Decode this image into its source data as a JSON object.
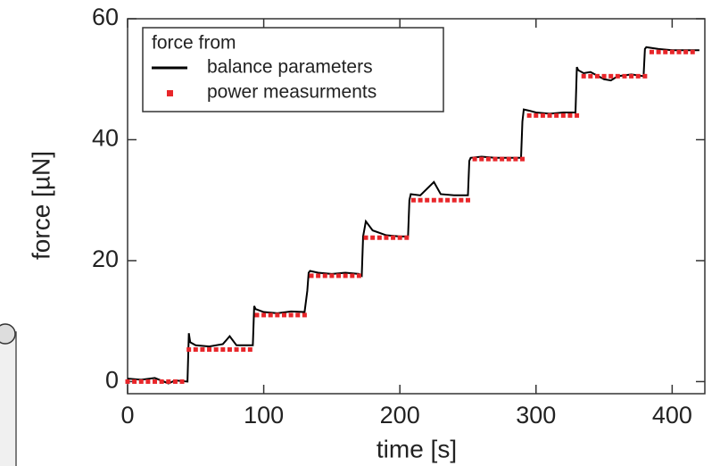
{
  "chart_data": {
    "type": "line",
    "xlabel": "time [s]",
    "ylabel": "force [µN]",
    "legend_title": "force from",
    "legend": "upper left",
    "xlim": [
      0,
      424
    ],
    "ylim": [
      -2,
      60
    ],
    "xticks": [
      0,
      100,
      200,
      300,
      400
    ],
    "yticks": [
      0,
      20,
      40,
      60
    ],
    "series": [
      {
        "name": "balance parameters",
        "color": "#000000",
        "type": "line",
        "x": [
          0,
          10,
          20,
          30,
          35,
          44,
          45,
          46,
          50,
          60,
          70,
          75,
          80,
          85,
          92,
          93,
          94,
          100,
          110,
          120,
          130,
          132,
          133,
          134,
          140,
          150,
          160,
          170,
          172,
          173,
          175,
          180,
          190,
          200,
          206,
          207,
          208,
          215,
          225,
          230,
          240,
          250,
          251,
          252,
          260,
          270,
          280,
          289,
          290,
          291,
          295,
          300,
          310,
          320,
          329,
          330,
          331,
          335,
          340,
          350,
          355,
          360,
          370,
          379,
          380,
          381,
          390,
          400,
          410,
          420
        ],
        "y": [
          0.5,
          0.3,
          0.6,
          -0.3,
          0.2,
          0.0,
          8,
          6.5,
          6,
          5.8,
          6.2,
          7.5,
          6,
          6,
          6,
          12.5,
          12,
          11.5,
          11.3,
          11.6,
          11.5,
          15,
          18,
          18.3,
          18,
          17.8,
          18,
          17.8,
          17.5,
          24,
          26.5,
          25,
          24.2,
          24,
          24,
          30,
          31,
          30.8,
          33,
          31,
          30.8,
          30.8,
          36.5,
          37,
          37.2,
          37,
          37,
          37,
          43,
          45,
          44.8,
          44.5,
          44.3,
          44.5,
          44.5,
          52,
          51.5,
          51,
          51.2,
          50,
          49.8,
          50.5,
          50.8,
          50.5,
          55,
          55.3,
          55,
          54.8,
          54.8,
          54.8
        ]
      },
      {
        "name": "power measurments",
        "color": "#e8262a",
        "type": "scatter",
        "x": [
          0,
          5,
          10,
          15,
          20,
          25,
          30,
          35,
          40,
          45,
          50,
          55,
          60,
          65,
          70,
          75,
          80,
          85,
          90,
          95,
          100,
          105,
          110,
          115,
          120,
          125,
          130,
          135,
          140,
          145,
          150,
          155,
          160,
          165,
          170,
          175,
          180,
          185,
          190,
          195,
          200,
          205,
          210,
          215,
          220,
          225,
          230,
          235,
          240,
          245,
          250,
          255,
          260,
          265,
          270,
          275,
          280,
          285,
          290,
          295,
          300,
          305,
          310,
          315,
          320,
          325,
          330,
          335,
          340,
          345,
          350,
          355,
          360,
          365,
          370,
          375,
          380,
          385,
          390,
          395,
          400,
          405,
          410,
          415
        ],
        "y": [
          0,
          0,
          0,
          0,
          0,
          0,
          0,
          0,
          0,
          5.3,
          5.3,
          5.3,
          5.3,
          5.3,
          5.3,
          5.3,
          5.3,
          5.3,
          5.3,
          11,
          11,
          11,
          11,
          11,
          11,
          11,
          11,
          17.5,
          17.5,
          17.5,
          17.5,
          17.5,
          17.5,
          17.5,
          17.5,
          23.8,
          23.8,
          23.8,
          23.8,
          23.8,
          23.8,
          23.8,
          30,
          30,
          30,
          30,
          30,
          30,
          30,
          30,
          30,
          36.8,
          36.8,
          36.8,
          36.8,
          36.8,
          36.8,
          36.8,
          36.8,
          44,
          44,
          44,
          44,
          44,
          44,
          44,
          44,
          50.5,
          50.5,
          50.5,
          50.5,
          50.5,
          50.5,
          50.5,
          50.5,
          50.5,
          50.5,
          54.5,
          54.5,
          54.5,
          54.5,
          54.5,
          54.5,
          54.5
        ]
      }
    ]
  }
}
